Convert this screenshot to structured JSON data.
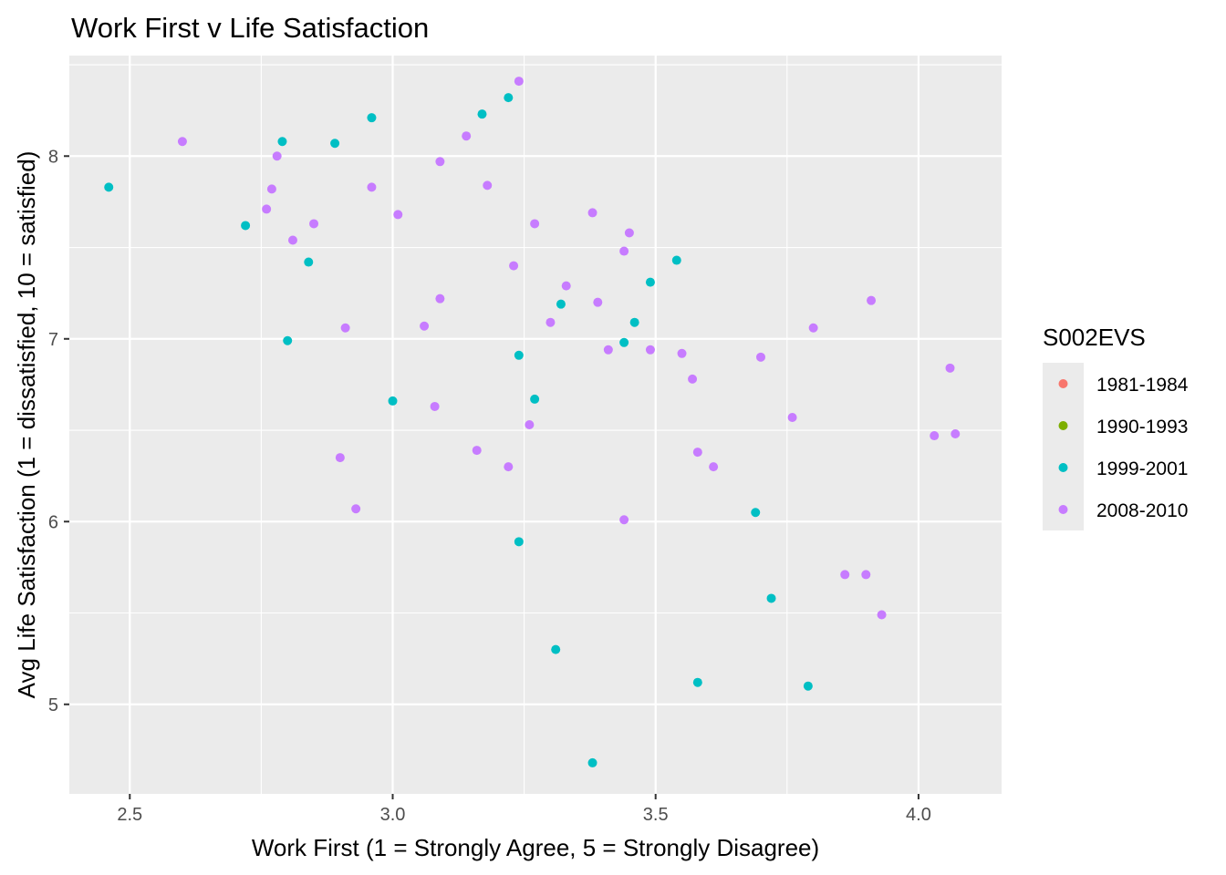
{
  "chart_data": {
    "type": "scatter",
    "title": "Work First v Life Satisfaction",
    "xlabel": "Work First (1 = Strongly Agree, 5 = Strongly Disagree)",
    "ylabel": "Avg Life Satisfaction (1 = dissatisfied, 10 = satisfied)",
    "xlim": [
      2.385,
      4.158
    ],
    "ylim": [
      4.51,
      8.55
    ],
    "x_ticks": [
      2.5,
      3.0,
      3.5,
      4.0
    ],
    "x_tick_labels": [
      "2.5",
      "3.0",
      "3.5",
      "4.0"
    ],
    "y_ticks": [
      5,
      6,
      7,
      8
    ],
    "y_tick_labels": [
      "5",
      "6",
      "7",
      "8"
    ],
    "grid": true,
    "panel_background": "#ebebeb",
    "legend": {
      "title": "S002EVS",
      "position": "right",
      "entries": [
        {
          "label": "1981-1984",
          "color": "#f8766d"
        },
        {
          "label": "1990-1993",
          "color": "#7cae00"
        },
        {
          "label": "1999-2001",
          "color": "#00bfc4"
        },
        {
          "label": "2008-2010",
          "color": "#c77cff"
        }
      ]
    },
    "series": [
      {
        "name": "1999-2001",
        "color": "#00bfc4",
        "points": [
          [
            2.46,
            7.83
          ],
          [
            2.72,
            7.62
          ],
          [
            2.79,
            8.08
          ],
          [
            2.8,
            6.99
          ],
          [
            2.84,
            7.42
          ],
          [
            2.89,
            8.07
          ],
          [
            2.96,
            8.21
          ],
          [
            3.0,
            6.66
          ],
          [
            3.17,
            8.23
          ],
          [
            3.22,
            8.32
          ],
          [
            3.24,
            6.91
          ],
          [
            3.24,
            5.89
          ],
          [
            3.27,
            6.67
          ],
          [
            3.31,
            5.3
          ],
          [
            3.32,
            7.19
          ],
          [
            3.38,
            4.68
          ],
          [
            3.44,
            6.98
          ],
          [
            3.46,
            7.09
          ],
          [
            3.49,
            7.31
          ],
          [
            3.54,
            7.43
          ],
          [
            3.58,
            5.12
          ],
          [
            3.69,
            6.05
          ],
          [
            3.72,
            5.58
          ],
          [
            3.79,
            5.1
          ]
        ]
      },
      {
        "name": "2008-2010",
        "color": "#c77cff",
        "points": [
          [
            2.6,
            8.08
          ],
          [
            2.76,
            7.71
          ],
          [
            2.77,
            7.82
          ],
          [
            2.78,
            8.0
          ],
          [
            2.81,
            7.54
          ],
          [
            2.85,
            7.63
          ],
          [
            2.9,
            6.35
          ],
          [
            2.91,
            7.06
          ],
          [
            2.93,
            6.07
          ],
          [
            2.96,
            7.83
          ],
          [
            3.01,
            7.68
          ],
          [
            3.06,
            7.07
          ],
          [
            3.08,
            6.63
          ],
          [
            3.09,
            7.22
          ],
          [
            3.09,
            7.97
          ],
          [
            3.14,
            8.11
          ],
          [
            3.16,
            6.39
          ],
          [
            3.18,
            7.84
          ],
          [
            3.22,
            6.3
          ],
          [
            3.23,
            7.4
          ],
          [
            3.24,
            8.41
          ],
          [
            3.26,
            6.53
          ],
          [
            3.27,
            7.63
          ],
          [
            3.3,
            7.09
          ],
          [
            3.33,
            7.29
          ],
          [
            3.38,
            7.69
          ],
          [
            3.39,
            7.2
          ],
          [
            3.41,
            6.94
          ],
          [
            3.44,
            7.48
          ],
          [
            3.44,
            6.01
          ],
          [
            3.45,
            7.58
          ],
          [
            3.49,
            6.94
          ],
          [
            3.55,
            6.92
          ],
          [
            3.57,
            6.78
          ],
          [
            3.58,
            6.38
          ],
          [
            3.61,
            6.3
          ],
          [
            3.7,
            6.9
          ],
          [
            3.76,
            6.57
          ],
          [
            3.8,
            7.06
          ],
          [
            3.86,
            5.71
          ],
          [
            3.9,
            5.71
          ],
          [
            3.91,
            7.21
          ],
          [
            3.93,
            5.49
          ],
          [
            4.03,
            6.47
          ],
          [
            4.06,
            6.84
          ],
          [
            4.07,
            6.48
          ]
        ]
      }
    ]
  }
}
